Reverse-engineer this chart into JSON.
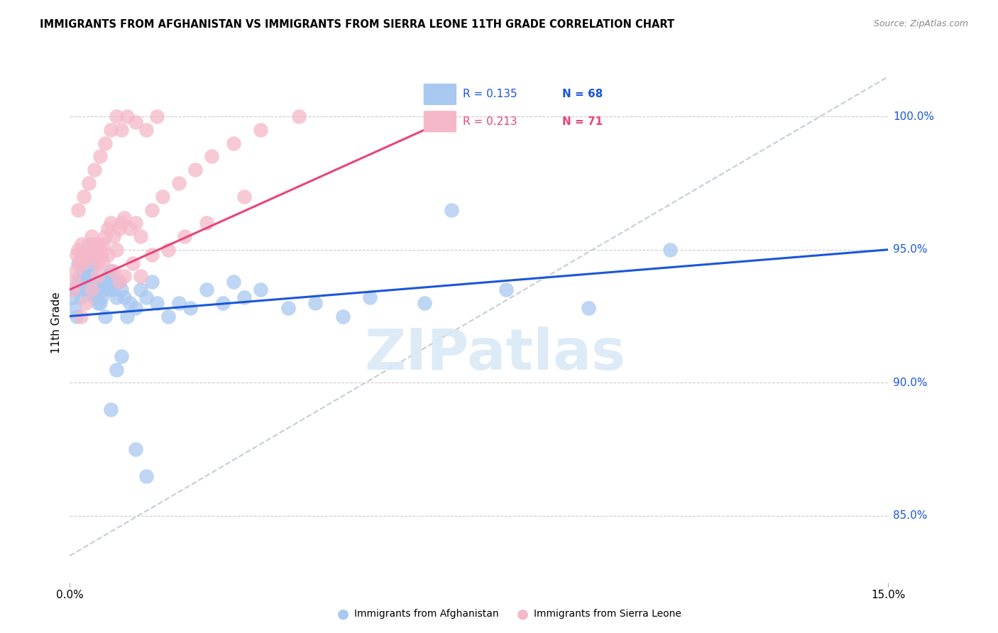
{
  "title": "IMMIGRANTS FROM AFGHANISTAN VS IMMIGRANTS FROM SIERRA LEONE 11TH GRADE CORRELATION CHART",
  "source": "Source: ZipAtlas.com",
  "ylabel": "11th Grade",
  "xlim": [
    0.0,
    15.0
  ],
  "ylim": [
    82.5,
    102.0
  ],
  "y_ticks": [
    85.0,
    90.0,
    95.0,
    100.0
  ],
  "y_tick_labels": [
    "85.0%",
    "90.0%",
    "95.0%",
    "100.0%"
  ],
  "afghanistan_color": "#A8C8F0",
  "sierra_leone_color": "#F5B8C8",
  "trend_afghanistan_color": "#1A56DB",
  "trend_sierra_leone_color": "#E8457A",
  "trend_dashed_color": "#C5CDD8",
  "watermark_color": "#D8E8F5",
  "watermark": "ZIPatlas",
  "afghanistan_x": [
    0.05,
    0.08,
    0.1,
    0.12,
    0.15,
    0.18,
    0.2,
    0.22,
    0.25,
    0.28,
    0.3,
    0.32,
    0.35,
    0.38,
    0.4,
    0.42,
    0.45,
    0.48,
    0.5,
    0.52,
    0.55,
    0.58,
    0.6,
    0.65,
    0.7,
    0.72,
    0.75,
    0.78,
    0.8,
    0.85,
    0.9,
    0.95,
    1.0,
    1.1,
    1.2,
    1.3,
    1.4,
    1.5,
    1.6,
    1.8,
    2.0,
    2.2,
    2.5,
    2.8,
    3.0,
    3.2,
    3.5,
    4.0,
    4.5,
    5.0,
    5.5,
    6.5,
    7.0,
    8.0,
    9.5,
    11.0,
    0.15,
    0.25,
    0.35,
    0.45,
    0.55,
    0.65,
    0.75,
    0.85,
    0.95,
    1.05,
    1.2,
    1.4
  ],
  "afghanistan_y": [
    93.2,
    92.8,
    93.5,
    92.5,
    93.8,
    94.0,
    93.2,
    93.8,
    94.2,
    93.5,
    93.8,
    94.0,
    93.5,
    94.2,
    93.8,
    94.5,
    93.2,
    93.8,
    93.5,
    93.0,
    93.8,
    93.2,
    93.5,
    93.8,
    94.0,
    93.5,
    94.2,
    93.8,
    93.5,
    93.2,
    93.8,
    93.5,
    93.2,
    93.0,
    92.8,
    93.5,
    93.2,
    93.8,
    93.0,
    92.5,
    93.0,
    92.8,
    93.5,
    93.0,
    93.8,
    93.2,
    93.5,
    92.8,
    93.0,
    92.5,
    93.2,
    93.0,
    96.5,
    93.5,
    92.8,
    95.0,
    94.5,
    94.8,
    93.5,
    93.2,
    93.0,
    92.5,
    89.0,
    90.5,
    91.0,
    92.5,
    87.5,
    86.5
  ],
  "sierra_leone_x": [
    0.05,
    0.08,
    0.1,
    0.12,
    0.15,
    0.18,
    0.2,
    0.22,
    0.25,
    0.28,
    0.3,
    0.32,
    0.35,
    0.38,
    0.4,
    0.42,
    0.45,
    0.48,
    0.5,
    0.52,
    0.55,
    0.58,
    0.6,
    0.65,
    0.7,
    0.75,
    0.8,
    0.85,
    0.9,
    0.95,
    1.0,
    1.1,
    1.2,
    1.3,
    1.5,
    1.7,
    2.0,
    2.3,
    2.6,
    3.0,
    3.5,
    4.2,
    0.15,
    0.25,
    0.35,
    0.45,
    0.55,
    0.65,
    0.75,
    0.85,
    0.95,
    1.05,
    1.2,
    1.4,
    1.6,
    0.2,
    0.3,
    0.4,
    0.5,
    0.6,
    0.7,
    0.8,
    0.9,
    1.0,
    1.15,
    1.3,
    1.5,
    1.8,
    2.1,
    2.5,
    3.2
  ],
  "sierra_leone_y": [
    93.5,
    93.8,
    94.2,
    94.8,
    95.0,
    94.5,
    94.8,
    95.2,
    94.5,
    94.8,
    95.0,
    94.8,
    95.2,
    94.8,
    95.5,
    95.2,
    94.8,
    95.0,
    95.2,
    94.5,
    95.0,
    94.8,
    95.2,
    95.5,
    95.8,
    96.0,
    95.5,
    95.0,
    95.8,
    96.0,
    96.2,
    95.8,
    96.0,
    95.5,
    96.5,
    97.0,
    97.5,
    98.0,
    98.5,
    99.0,
    99.5,
    100.0,
    96.5,
    97.0,
    97.5,
    98.0,
    98.5,
    99.0,
    99.5,
    100.0,
    99.5,
    100.0,
    99.8,
    99.5,
    100.0,
    92.5,
    93.0,
    93.5,
    94.0,
    94.5,
    94.8,
    94.2,
    93.8,
    94.0,
    94.5,
    94.0,
    94.8,
    95.0,
    95.5,
    96.0,
    97.0
  ],
  "afg_trend_x0": 0.0,
  "afg_trend_x1": 15.0,
  "afg_trend_y0": 92.5,
  "afg_trend_y1": 95.0,
  "sl_trend_x0": 0.0,
  "sl_trend_x1": 6.5,
  "sl_trend_y0": 93.5,
  "sl_trend_y1": 99.5,
  "dashed_x0": 0.0,
  "dashed_x1": 15.0,
  "dashed_y0": 83.5,
  "dashed_y1": 101.5
}
